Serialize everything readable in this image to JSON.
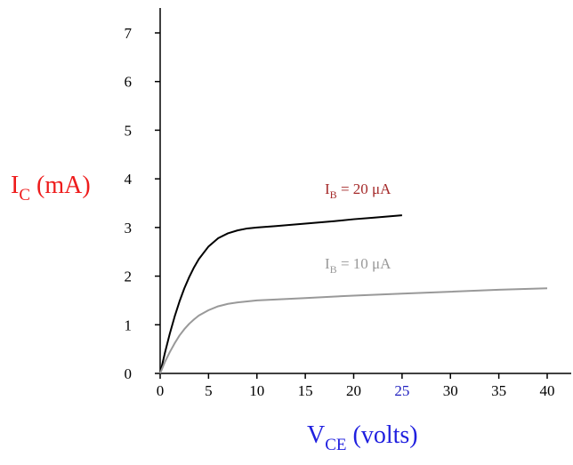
{
  "chart_data": {
    "type": "line",
    "xlabel": {
      "main": "V",
      "sub": "CE",
      "rest": " (volts)",
      "color": "#1f1fdf"
    },
    "ylabel": {
      "main": "I",
      "sub": "C",
      "rest": " (mA)",
      "color": "#ee1c1c"
    },
    "xlim": [
      0,
      40
    ],
    "ylim": [
      0,
      7
    ],
    "x_ticks": [
      "0",
      "5",
      "10",
      "15",
      "20",
      "25",
      "30",
      "35",
      "40"
    ],
    "y_ticks": [
      "0",
      "1",
      "2",
      "3",
      "4",
      "5",
      "6",
      "7"
    ],
    "x_tick_colors": {
      "25": "#1f1fbf"
    },
    "grid": false,
    "series": [
      {
        "main": "I",
        "sub": "B",
        "rest": " = 20 μA",
        "color": "#000000",
        "label_color": "#a52a2a",
        "x": [
          0,
          0.5,
          1,
          1.5,
          2,
          2.5,
          3,
          3.5,
          4,
          5,
          6,
          7,
          8,
          9,
          10,
          12,
          15,
          18,
          20,
          22,
          25
        ],
        "y": [
          0,
          0.43,
          0.82,
          1.17,
          1.48,
          1.75,
          1.98,
          2.18,
          2.35,
          2.61,
          2.78,
          2.88,
          2.94,
          2.98,
          3.0,
          3.03,
          3.08,
          3.13,
          3.17,
          3.2,
          3.25
        ]
      },
      {
        "main": "I",
        "sub": "B",
        "rest": " = 10 μA",
        "color": "#999999",
        "label_color": "#999999",
        "x": [
          0,
          0.5,
          1,
          1.5,
          2,
          2.5,
          3,
          3.5,
          4,
          5,
          6,
          7,
          8,
          9,
          10,
          15,
          20,
          25,
          30,
          35,
          40
        ],
        "y": [
          0,
          0.24,
          0.44,
          0.62,
          0.78,
          0.91,
          1.02,
          1.11,
          1.19,
          1.3,
          1.38,
          1.43,
          1.46,
          1.48,
          1.5,
          1.55,
          1.6,
          1.64,
          1.68,
          1.72,
          1.75
        ]
      }
    ]
  }
}
